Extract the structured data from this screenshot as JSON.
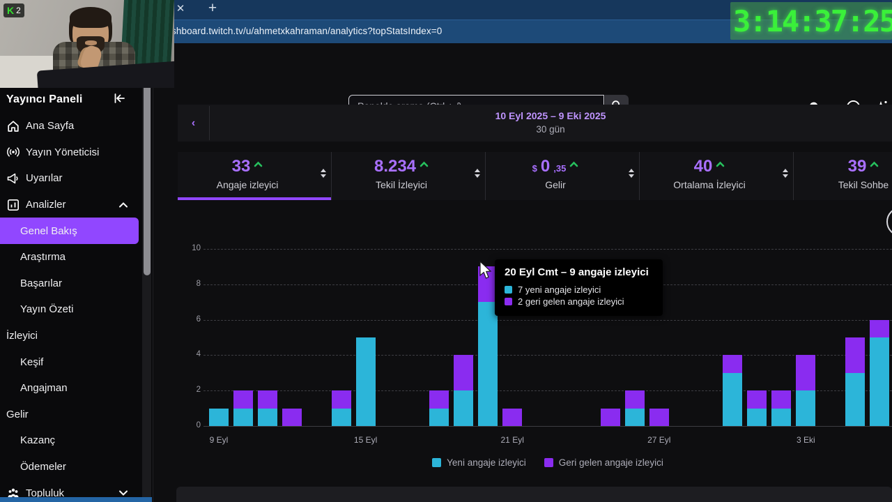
{
  "webcam": {
    "badge_letter": "K",
    "badge_count": "2"
  },
  "browser": {
    "close_tab_glyph": "✕",
    "new_tab_glyph": "+",
    "url": "shboard.twitch.tv/u/ahmetxkahraman/analytics?topStatsIndex=0"
  },
  "timer": {
    "text": "3:14:37:25"
  },
  "header": {
    "search_placeholder": "Panelde arama (Ctrl + /)"
  },
  "sidebar": {
    "title": "Yayıncı Paneli",
    "items": [
      {
        "label": "Ana Sayfa",
        "icon": "home",
        "indent": 0
      },
      {
        "label": "Yayın Yöneticisi",
        "icon": "broadcast",
        "indent": 0
      },
      {
        "label": "Uyarılar",
        "icon": "megaphone",
        "indent": 0
      },
      {
        "label": "Analizler",
        "icon": "analytics",
        "indent": 0,
        "chevron": "up"
      },
      {
        "label": "Genel Bakış",
        "indent": 1,
        "selected": true
      },
      {
        "label": "Araştırma",
        "indent": 1
      },
      {
        "label": "Başarılar",
        "indent": 1
      },
      {
        "label": "Yayın Özeti",
        "indent": 1
      },
      {
        "label": "İzleyici",
        "indent": 0,
        "header": true
      },
      {
        "label": "Keşif",
        "indent": 1
      },
      {
        "label": "Angajman",
        "indent": 1
      },
      {
        "label": "Gelir",
        "indent": 0,
        "header": true
      },
      {
        "label": "Kazanç",
        "indent": 1
      },
      {
        "label": "Ödemeler",
        "indent": 1
      },
      {
        "label": "Topluluk",
        "icon": "people",
        "indent": 0,
        "chevron": "down"
      }
    ]
  },
  "daterange": {
    "range": "10 Eyl 2025 – 9 Eki 2025",
    "duration": "30 gün"
  },
  "stats": [
    {
      "prefix": "",
      "value": "33",
      "suffix": "",
      "label": "Angaje izleyici",
      "trend": "up",
      "selected": true
    },
    {
      "prefix": "",
      "value": "8.234",
      "suffix": "",
      "label": "Tekil İzleyici",
      "trend": "up"
    },
    {
      "prefix": "$",
      "value": "0",
      "suffix": ",35",
      "label": "Gelir",
      "trend": "up"
    },
    {
      "prefix": "",
      "value": "40",
      "suffix": "",
      "label": "Ortalama İzleyici",
      "trend": "up"
    },
    {
      "prefix": "",
      "value": "39",
      "suffix": "",
      "label": "Tekil Sohbe",
      "trend": "up"
    }
  ],
  "tooltip": {
    "title": "20 Eyl Cmt – 9 angaje izleyici",
    "rows": [
      {
        "color": "#2cb5d9",
        "text": "7 yeni angaje izleyici"
      },
      {
        "color": "#8a2cf0",
        "text": "2 geri gelen angaje izleyici"
      }
    ]
  },
  "chart_data": {
    "type": "bar",
    "stacked": true,
    "ylim": [
      0,
      10
    ],
    "yticks": [
      0,
      2,
      4,
      6,
      8,
      10
    ],
    "grid": "dashed-horizontal",
    "legend_position": "bottom-center",
    "colors": {
      "new": "#2cb5d9",
      "returning": "#8a2cf0"
    },
    "xticks": [
      {
        "slot": 0,
        "label": "9 Eyl"
      },
      {
        "slot": 6,
        "label": "15 Eyl"
      },
      {
        "slot": 12,
        "label": "21 Eyl"
      },
      {
        "slot": 18,
        "label": "27 Eyl"
      },
      {
        "slot": 24,
        "label": "3 Eki"
      }
    ],
    "series": [
      {
        "name": "Yeni angaje izleyici",
        "key": "new"
      },
      {
        "name": "Geri gelen angaje izleyici",
        "key": "returning"
      }
    ],
    "days": [
      {
        "date": "9 Eyl",
        "new": 1,
        "returning": 0
      },
      {
        "date": "10 Eyl",
        "new": 1,
        "returning": 1
      },
      {
        "date": "11 Eyl",
        "new": 1,
        "returning": 1
      },
      {
        "date": "12 Eyl",
        "new": 0,
        "returning": 1
      },
      {
        "date": "13 Eyl",
        "new": 0,
        "returning": 0
      },
      {
        "date": "14 Eyl",
        "new": 1,
        "returning": 1
      },
      {
        "date": "15 Eyl",
        "new": 5,
        "returning": 0
      },
      {
        "date": "16 Eyl",
        "new": 0,
        "returning": 0
      },
      {
        "date": "17 Eyl",
        "new": 0,
        "returning": 0
      },
      {
        "date": "18 Eyl",
        "new": 1,
        "returning": 1
      },
      {
        "date": "19 Eyl",
        "new": 2,
        "returning": 2
      },
      {
        "date": "20 Eyl",
        "new": 7,
        "returning": 2,
        "hovered": true
      },
      {
        "date": "21 Eyl",
        "new": 0,
        "returning": 1
      },
      {
        "date": "22 Eyl",
        "new": 0,
        "returning": 0
      },
      {
        "date": "23 Eyl",
        "new": 0,
        "returning": 0
      },
      {
        "date": "24 Eyl",
        "new": 0,
        "returning": 0
      },
      {
        "date": "25 Eyl",
        "new": 0,
        "returning": 1
      },
      {
        "date": "26 Eyl",
        "new": 1,
        "returning": 1
      },
      {
        "date": "27 Eyl",
        "new": 0,
        "returning": 1
      },
      {
        "date": "28 Eyl",
        "new": 0,
        "returning": 0
      },
      {
        "date": "29 Eyl",
        "new": 0,
        "returning": 0
      },
      {
        "date": "30 Eyl",
        "new": 3,
        "returning": 1
      },
      {
        "date": "1 Eki",
        "new": 1,
        "returning": 1
      },
      {
        "date": "2 Eki",
        "new": 1,
        "returning": 1
      },
      {
        "date": "3 Eki",
        "new": 2,
        "returning": 2
      },
      {
        "date": "4 Eki",
        "new": 0,
        "returning": 0
      },
      {
        "date": "5 Eki",
        "new": 3,
        "returning": 2
      },
      {
        "date": "6 Eki",
        "new": 5,
        "returning": 1
      },
      {
        "date": "7 Eki",
        "new": 0,
        "returning": 0
      },
      {
        "date": "8 Eki",
        "new": 0,
        "returning": 0
      },
      {
        "date": "9 Eki",
        "new": 0,
        "returning": 0
      }
    ]
  }
}
